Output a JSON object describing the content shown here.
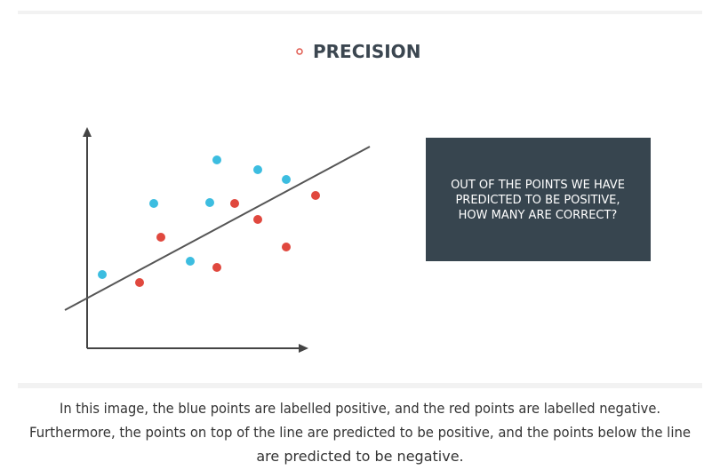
{
  "slide": {
    "title": "PRECISION",
    "box_text": [
      "OUT OF THE POINTS WE HAVE",
      "PREDICTED TO BE POSITIVE,",
      "HOW MANY ARE CORRECT?"
    ]
  },
  "caption": [
    "In this image, the blue points are labelled positive, and the red points are labelled negative.",
    "Furthermore, the points on top of the line are predicted to be positive, and the points below the line",
    "are predicted to be negative."
  ]
}
